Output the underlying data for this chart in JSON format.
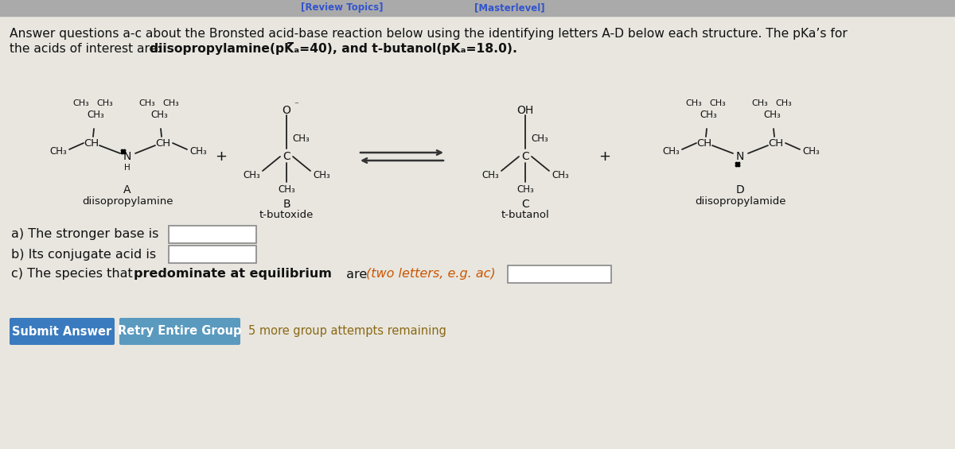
{
  "bg_color": "#cccbc4",
  "panel_bg": "#e8e6df",
  "header_line1": "Answer questions a-c about the Bronsted acid-base reaction below using the identifying letters A-D below each structure. The pKa’s for",
  "header_line2_plain": "the acids of interest are: ",
  "header_line2_bold": "diisopropylamine(pK̅ₐ=40), and t-butanol(pKₐ=18.0).",
  "question_a": "a) The stronger base is",
  "question_b": "b) Its conjugate acid is",
  "question_c_pre": "c) The species that ",
  "question_c_bold": "predominate at equilibrium",
  "question_c_mid": " are ",
  "question_c_hint": "(two letters, e.g. ac)",
  "submit_btn_text": "Submit Answer",
  "submit_btn_color": "#3a7bbf",
  "retry_btn_text": "Retry Entire Group",
  "retry_btn_color": "#5a9abf",
  "attempts_text": "5 more group attempts remaining",
  "attempts_color": "#8B6914",
  "text_color": "#111111",
  "nav_color": "#aaaaaa",
  "review_link_color": "#3355cc",
  "master_link_color": "#3355cc"
}
